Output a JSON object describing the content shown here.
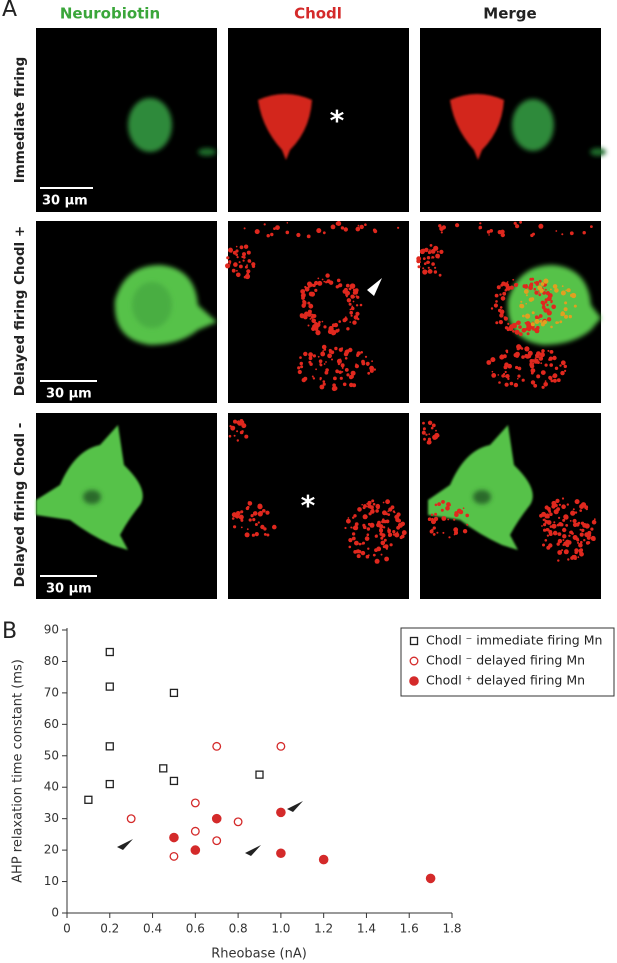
{
  "panel_a": {
    "label": "A",
    "columns": [
      "Neurobiotin",
      "Chodl",
      "Merge"
    ],
    "rows": [
      "Immediate firing",
      "Delayed firing Chodl +",
      "Delayed firing Chodl -"
    ],
    "scale_bar": "30 µm"
  },
  "chart_data": {
    "type": "scatter",
    "panel_label": "B",
    "x_label": "Rheobase (nA)",
    "y_label": "AHP relaxation time constant (ms)",
    "xlim": [
      0,
      1.8
    ],
    "ylim": [
      0,
      90
    ],
    "xticks": [
      0,
      0.2,
      0.4,
      0.6,
      0.8,
      {
        "value": 1,
        "label": "1.0"
      },
      1.2,
      1.4,
      1.6,
      1.8
    ],
    "yticks": [
      0,
      10,
      20,
      30,
      40,
      50,
      60,
      70,
      80,
      90
    ],
    "legend": "upper right",
    "series": [
      {
        "name": "Chodl ⁻ immediate firing Mn",
        "color": "#222222",
        "marker": "open-square",
        "x": [
          0.1,
          0.2,
          0.2,
          0.2,
          0.2,
          0.45,
          0.5,
          0.5,
          0.9
        ],
        "values": [
          36,
          83,
          72,
          53,
          41,
          46,
          70,
          42,
          44
        ]
      },
      {
        "name": "Chodl ⁻ delayed firing Mn",
        "color": "#d42a2a",
        "marker": "open-circle",
        "x": [
          0.3,
          0.5,
          0.6,
          0.6,
          0.7,
          0.7,
          0.8,
          1.0
        ],
        "values": [
          30,
          18,
          35,
          26,
          53,
          23,
          29,
          53
        ]
      },
      {
        "name": "Chodl ⁺ delayed firing Mn",
        "color": "#d42a2a",
        "marker": "filled-circle",
        "x": [
          0.5,
          0.6,
          0.7,
          1.0,
          1.0,
          1.2,
          1.7
        ],
        "values": [
          24,
          20,
          30,
          32,
          19,
          17,
          11
        ]
      }
    ]
  }
}
